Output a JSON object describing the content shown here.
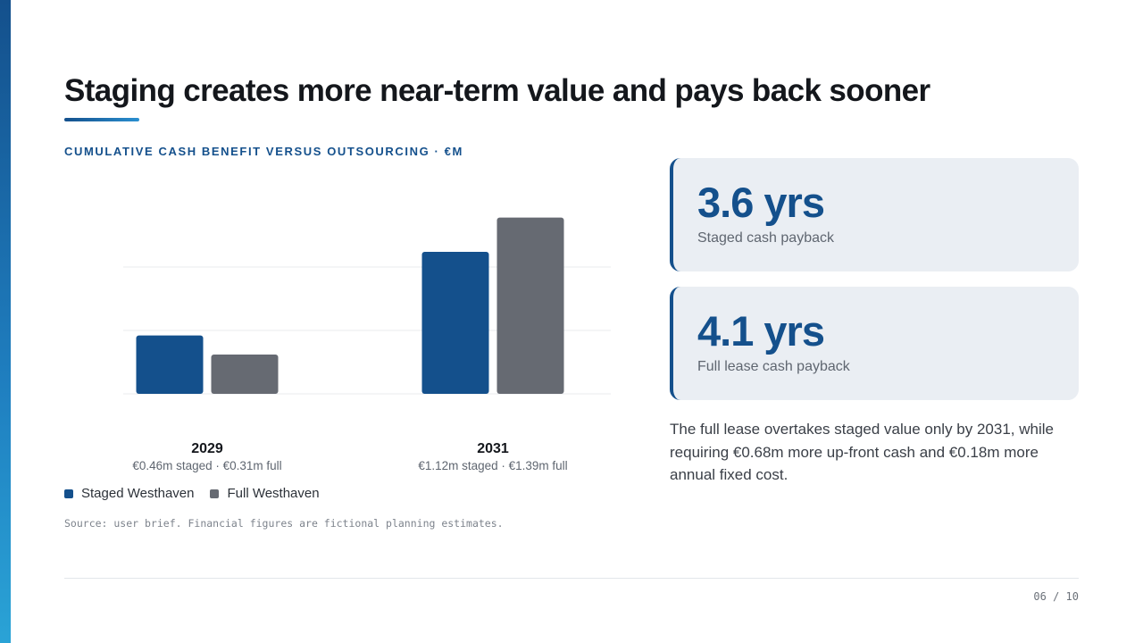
{
  "title": "Staging creates more near-term value and pays back sooner",
  "chart_label": "CUMULATIVE CASH BENEFIT VERSUS OUTSOURCING · €M",
  "chart_data": {
    "type": "bar",
    "categories": [
      "2029",
      "2031"
    ],
    "category_labels": [
      "€0.46m staged · €0.31m full",
      "€1.12m staged · €1.39m full"
    ],
    "series": [
      {
        "name": "Staged Westhaven",
        "values": [
          0.46,
          1.12
        ],
        "color": "#14508c"
      },
      {
        "name": "Full Westhaven",
        "values": [
          0.31,
          1.39
        ],
        "color": "#666a72"
      }
    ],
    "ylim": [
      0,
      1.5
    ],
    "grid": true,
    "legend_position": "bottom-left"
  },
  "legend": [
    {
      "label": "Staged Westhaven",
      "color": "#14508c"
    },
    {
      "label": "Full Westhaven",
      "color": "#666a72"
    }
  ],
  "source": "Source: user brief. Financial figures are fictional planning estimates.",
  "kpis": [
    {
      "value": "3.6 yrs",
      "label": "Staged cash payback"
    },
    {
      "value": "4.1 yrs",
      "label": "Full lease cash payback"
    }
  ],
  "body_text": "The full lease overtakes staged value only by 2031, while requiring €0.68m more up-front cash and €0.18m more annual fixed cost.",
  "page_number": "06 / 10",
  "colors": {
    "accent": "#14508c",
    "gray_series": "#666a72",
    "card_bg": "#eaeef3"
  }
}
